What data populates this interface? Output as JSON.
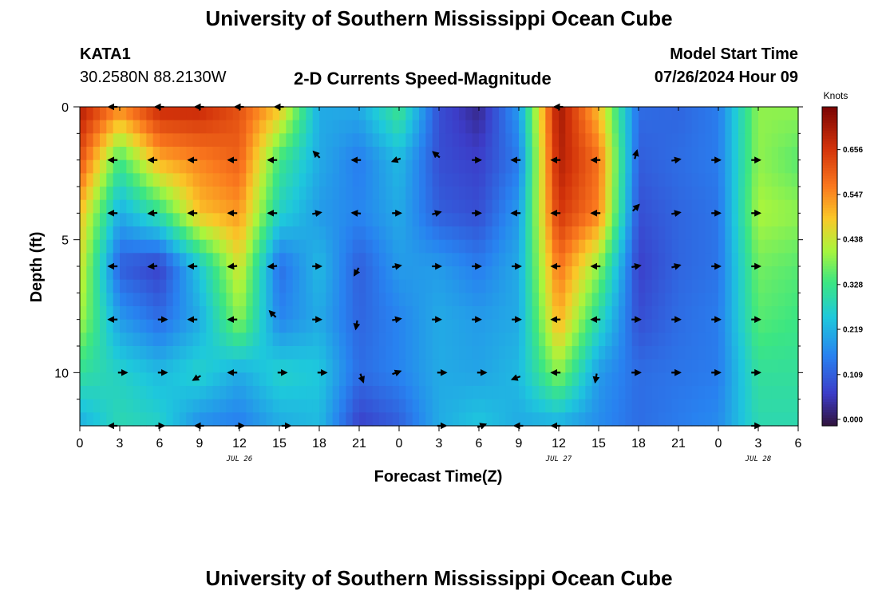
{
  "header": {
    "title": "University of Southern Mississippi Ocean Cube",
    "station_id": "KATA1",
    "coords": "30.2580N  88.2130W",
    "chart_title": "2-D Currents Speed-Magnitude",
    "model_start_label": "Model Start Time",
    "model_start_value": "07/26/2024 Hour 09"
  },
  "footer": {
    "title": "University of Southern Mississippi Ocean Cube"
  },
  "chart_data": {
    "type": "heatmap",
    "title": "2-D Currents Speed-Magnitude",
    "xlabel": "Forecast Time(Z)",
    "ylabel": "Depth (ft)",
    "colorbar_label": "Knots",
    "x_hours": [
      0,
      54
    ],
    "y_range": [
      0,
      12
    ],
    "x_tick_labels": [
      "0",
      "3",
      "6",
      "9",
      "12",
      "15",
      "18",
      "21",
      "0",
      "3",
      "6",
      "9",
      "12",
      "15",
      "18",
      "21",
      "0",
      "3",
      "6"
    ],
    "y_tick_labels": [
      "0",
      "5",
      "10"
    ],
    "y_tick_values": [
      0,
      5,
      10
    ],
    "date_labels": [
      {
        "label": "JUL 26",
        "hour": 12
      },
      {
        "label": "JUL 27",
        "hour": 36
      },
      {
        "label": "JUL 28",
        "hour": 51
      }
    ],
    "colorbar_ticks": [
      "0.000",
      "0.109",
      "0.219",
      "0.328",
      "0.438",
      "0.547",
      "0.656"
    ],
    "colorbar_values": [
      0.0,
      0.109,
      0.219,
      0.328,
      0.438,
      0.547,
      0.656
    ],
    "vmin": 0.0,
    "vmax": 0.76,
    "depth_levels": [
      0,
      2,
      4,
      6,
      8,
      10,
      12
    ],
    "hour_columns": [
      0,
      3,
      6,
      9,
      12,
      15,
      18,
      21,
      24,
      27,
      30,
      33,
      36,
      39,
      42,
      45,
      48,
      51,
      54
    ],
    "speed": [
      [
        0.7,
        0.56,
        0.68,
        0.68,
        0.62,
        0.5,
        0.22,
        0.22,
        0.34,
        0.1,
        0.04,
        0.2,
        0.72,
        0.5,
        0.14,
        0.13,
        0.16,
        0.4,
        0.4
      ],
      [
        0.62,
        0.34,
        0.52,
        0.56,
        0.6,
        0.34,
        0.22,
        0.16,
        0.24,
        0.1,
        0.08,
        0.16,
        0.7,
        0.58,
        0.12,
        0.14,
        0.16,
        0.4,
        0.36
      ],
      [
        0.5,
        0.22,
        0.32,
        0.5,
        0.54,
        0.28,
        0.2,
        0.17,
        0.22,
        0.12,
        0.1,
        0.2,
        0.66,
        0.56,
        0.1,
        0.13,
        0.15,
        0.42,
        0.4
      ],
      [
        0.46,
        0.12,
        0.08,
        0.26,
        0.46,
        0.14,
        0.24,
        0.12,
        0.2,
        0.2,
        0.16,
        0.22,
        0.58,
        0.4,
        0.08,
        0.13,
        0.15,
        0.38,
        0.36
      ],
      [
        0.42,
        0.2,
        0.14,
        0.22,
        0.4,
        0.17,
        0.22,
        0.13,
        0.17,
        0.22,
        0.2,
        0.22,
        0.52,
        0.3,
        0.1,
        0.14,
        0.16,
        0.36,
        0.34
      ],
      [
        0.32,
        0.28,
        0.24,
        0.28,
        0.22,
        0.28,
        0.26,
        0.14,
        0.17,
        0.22,
        0.21,
        0.24,
        0.4,
        0.2,
        0.14,
        0.15,
        0.16,
        0.32,
        0.32
      ],
      [
        0.22,
        0.3,
        0.28,
        0.18,
        0.16,
        0.22,
        0.24,
        0.08,
        0.12,
        0.22,
        0.26,
        0.22,
        0.22,
        0.18,
        0.14,
        0.16,
        0.18,
        0.3,
        0.3
      ]
    ],
    "arrows": [
      {
        "h": 2.5,
        "d": 0,
        "a": 180
      },
      {
        "h": 6,
        "d": 0,
        "a": 180
      },
      {
        "h": 9,
        "d": 0,
        "a": 180
      },
      {
        "h": 12,
        "d": 0,
        "a": 180
      },
      {
        "h": 15,
        "d": 0,
        "a": 180
      },
      {
        "h": 36,
        "d": 0,
        "a": 180
      },
      {
        "h": 2.5,
        "d": 2,
        "a": 180
      },
      {
        "h": 5.5,
        "d": 2,
        "a": 180
      },
      {
        "h": 8.5,
        "d": 2,
        "a": 180
      },
      {
        "h": 11.5,
        "d": 2,
        "a": 180
      },
      {
        "h": 14.5,
        "d": 2,
        "a": 180
      },
      {
        "h": 17.8,
        "d": 1.8,
        "a": 135
      },
      {
        "h": 20.8,
        "d": 2,
        "a": 180
      },
      {
        "h": 23.8,
        "d": 2,
        "a": 200
      },
      {
        "h": 26.8,
        "d": 1.8,
        "a": 140
      },
      {
        "h": 29.8,
        "d": 2,
        "a": 0
      },
      {
        "h": 32.8,
        "d": 2,
        "a": 180
      },
      {
        "h": 35.8,
        "d": 2,
        "a": 180
      },
      {
        "h": 38.8,
        "d": 2,
        "a": 180
      },
      {
        "h": 41.8,
        "d": 1.8,
        "a": 75
      },
      {
        "h": 44.8,
        "d": 2,
        "a": 10
      },
      {
        "h": 47.8,
        "d": 2,
        "a": 0
      },
      {
        "h": 50.8,
        "d": 2,
        "a": 0
      },
      {
        "h": 2.5,
        "d": 4,
        "a": 180
      },
      {
        "h": 5.5,
        "d": 4,
        "a": 185
      },
      {
        "h": 8.5,
        "d": 4,
        "a": 180
      },
      {
        "h": 11.5,
        "d": 4,
        "a": 180
      },
      {
        "h": 14.5,
        "d": 4,
        "a": 180
      },
      {
        "h": 17.8,
        "d": 4,
        "a": 10
      },
      {
        "h": 20.8,
        "d": 4,
        "a": 175
      },
      {
        "h": 23.8,
        "d": 4,
        "a": 0
      },
      {
        "h": 26.8,
        "d": 4,
        "a": 15
      },
      {
        "h": 29.8,
        "d": 4,
        "a": 0
      },
      {
        "h": 32.8,
        "d": 4,
        "a": 180
      },
      {
        "h": 35.8,
        "d": 4,
        "a": 180
      },
      {
        "h": 38.8,
        "d": 4,
        "a": 180
      },
      {
        "h": 41.8,
        "d": 3.8,
        "a": 45
      },
      {
        "h": 44.8,
        "d": 4,
        "a": 10
      },
      {
        "h": 47.8,
        "d": 4,
        "a": 0
      },
      {
        "h": 50.8,
        "d": 4,
        "a": 0
      },
      {
        "h": 2.5,
        "d": 6,
        "a": 180
      },
      {
        "h": 5.5,
        "d": 6,
        "a": 185
      },
      {
        "h": 8.5,
        "d": 6,
        "a": 180
      },
      {
        "h": 11.5,
        "d": 6,
        "a": 185
      },
      {
        "h": 14.5,
        "d": 6,
        "a": 185
      },
      {
        "h": 17.8,
        "d": 6,
        "a": 0
      },
      {
        "h": 20.8,
        "d": 6.2,
        "a": 240
      },
      {
        "h": 23.8,
        "d": 6,
        "a": 10
      },
      {
        "h": 26.8,
        "d": 6,
        "a": 0
      },
      {
        "h": 29.8,
        "d": 6,
        "a": 0
      },
      {
        "h": 32.8,
        "d": 6,
        "a": 0
      },
      {
        "h": 35.8,
        "d": 6,
        "a": 180
      },
      {
        "h": 38.8,
        "d": 6,
        "a": 180
      },
      {
        "h": 41.8,
        "d": 6,
        "a": 10
      },
      {
        "h": 44.8,
        "d": 6,
        "a": 15
      },
      {
        "h": 47.8,
        "d": 6,
        "a": 0
      },
      {
        "h": 50.8,
        "d": 6,
        "a": 0
      },
      {
        "h": 2.5,
        "d": 8,
        "a": 180
      },
      {
        "h": 6.2,
        "d": 8,
        "a": 0
      },
      {
        "h": 8.5,
        "d": 8,
        "a": 180
      },
      {
        "h": 11.5,
        "d": 8,
        "a": 180
      },
      {
        "h": 14.5,
        "d": 7.8,
        "a": 135
      },
      {
        "h": 17.8,
        "d": 8,
        "a": 0
      },
      {
        "h": 20.8,
        "d": 8.2,
        "a": 260
      },
      {
        "h": 23.8,
        "d": 8,
        "a": 10
      },
      {
        "h": 26.8,
        "d": 8,
        "a": 0
      },
      {
        "h": 29.8,
        "d": 8,
        "a": 0
      },
      {
        "h": 32.8,
        "d": 8,
        "a": 0
      },
      {
        "h": 35.8,
        "d": 8,
        "a": 180
      },
      {
        "h": 38.8,
        "d": 8,
        "a": 180
      },
      {
        "h": 41.8,
        "d": 8,
        "a": 0
      },
      {
        "h": 44.8,
        "d": 8,
        "a": 0
      },
      {
        "h": 47.8,
        "d": 8,
        "a": 0
      },
      {
        "h": 50.8,
        "d": 8,
        "a": 0
      },
      {
        "h": 3.2,
        "d": 10,
        "a": 0
      },
      {
        "h": 6.2,
        "d": 10,
        "a": 0
      },
      {
        "h": 8.8,
        "d": 10.2,
        "a": 210
      },
      {
        "h": 11.5,
        "d": 10,
        "a": 180
      },
      {
        "h": 15.2,
        "d": 10,
        "a": 0
      },
      {
        "h": 18.2,
        "d": 10,
        "a": 0
      },
      {
        "h": 21.2,
        "d": 10.2,
        "a": 290
      },
      {
        "h": 23.8,
        "d": 10,
        "a": 20
      },
      {
        "h": 27.2,
        "d": 10,
        "a": 0
      },
      {
        "h": 30.2,
        "d": 10,
        "a": 0
      },
      {
        "h": 32.8,
        "d": 10.2,
        "a": 200
      },
      {
        "h": 35.8,
        "d": 10,
        "a": 180
      },
      {
        "h": 38.8,
        "d": 10.2,
        "a": 260
      },
      {
        "h": 41.8,
        "d": 10,
        "a": 0
      },
      {
        "h": 44.8,
        "d": 10,
        "a": 0
      },
      {
        "h": 47.8,
        "d": 10,
        "a": 0
      },
      {
        "h": 50.8,
        "d": 10,
        "a": 0
      },
      {
        "h": 2.5,
        "d": 12,
        "a": 180
      },
      {
        "h": 6,
        "d": 12,
        "a": 0
      },
      {
        "h": 9,
        "d": 12,
        "a": 180
      },
      {
        "h": 12,
        "d": 12,
        "a": 0
      },
      {
        "h": 15.5,
        "d": 12,
        "a": 0
      },
      {
        "h": 27.2,
        "d": 12,
        "a": 0
      },
      {
        "h": 30.2,
        "d": 12,
        "a": 20
      },
      {
        "h": 33,
        "d": 12,
        "a": 180
      },
      {
        "h": 35.8,
        "d": 12,
        "a": 180
      },
      {
        "h": 50.8,
        "d": 12,
        "a": 0
      }
    ]
  }
}
